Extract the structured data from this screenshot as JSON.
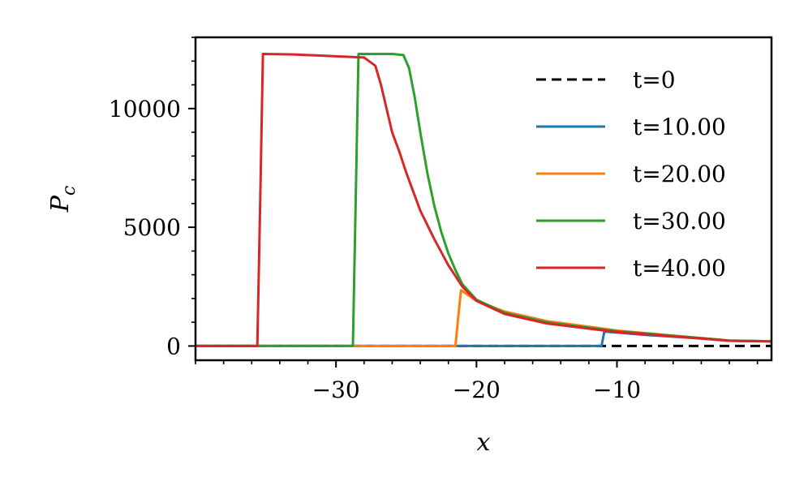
{
  "chart_data": {
    "type": "line",
    "xlabel": "x",
    "ylabel": "P",
    "ylabel_subscript": "c",
    "xlim": [
      -40,
      1
    ],
    "ylim": [
      -600,
      13000
    ],
    "xticks": [
      -30,
      -20,
      -10
    ],
    "xtick_labels": [
      "−30",
      "−20",
      "−10"
    ],
    "yticks": [
      0,
      5000,
      10000
    ],
    "ytick_labels": [
      "0",
      "5000",
      "10000"
    ],
    "x_minor_tick_step": 2,
    "y_minor_tick_step": 1000,
    "legend_position": "upper-right",
    "grid": false,
    "series": [
      {
        "name": "t=0",
        "color": "#000000",
        "dash": "dashed",
        "x": [
          -40,
          1
        ],
        "y": [
          0,
          0
        ]
      },
      {
        "name": "t=10.00",
        "color": "#1f77b4",
        "dash": "solid",
        "x": [
          -40,
          -11.1,
          -10.9,
          -10.7,
          -8,
          -4,
          -2,
          1
        ],
        "y": [
          0,
          0,
          600,
          600,
          470,
          320,
          220,
          200
        ]
      },
      {
        "name": "t=20.00",
        "color": "#ff7f0e",
        "dash": "solid",
        "x": [
          -40,
          -21.5,
          -21.3,
          -21.1,
          -20,
          -18,
          -15,
          -10,
          -5,
          -2,
          1
        ],
        "y": [
          0,
          0,
          1200,
          2350,
          1900,
          1450,
          1050,
          650,
          380,
          230,
          200
        ]
      },
      {
        "name": "t=30.00",
        "color": "#2ca02c",
        "dash": "solid",
        "x": [
          -40,
          -28.8,
          -28.6,
          -28.4,
          -27.5,
          -26,
          -25.2,
          -24.8,
          -24.4,
          -24,
          -23.5,
          -23,
          -22.5,
          -22,
          -21.5,
          -21,
          -20,
          -18,
          -15,
          -10,
          -5,
          -2,
          1
        ],
        "y": [
          0,
          0,
          6000,
          12300,
          12300,
          12300,
          12250,
          11700,
          10500,
          9000,
          7300,
          5900,
          4800,
          3900,
          3200,
          2600,
          1950,
          1400,
          1000,
          620,
          380,
          230,
          200
        ]
      },
      {
        "name": "t=40.00",
        "color": "#d62728",
        "dash": "solid",
        "x": [
          -40,
          -35.6,
          -35.4,
          -35.2,
          -33,
          -30,
          -28,
          -27.2,
          -26.8,
          -26.4,
          -26,
          -25.5,
          -25,
          -24.5,
          -24,
          -23,
          -22,
          -21,
          -20,
          -18,
          -15,
          -10,
          -5,
          -2,
          1
        ],
        "y": [
          0,
          0,
          6000,
          12300,
          12280,
          12200,
          12150,
          11800,
          11000,
          10000,
          9000,
          8200,
          7300,
          6500,
          5700,
          4500,
          3400,
          2500,
          1900,
          1350,
          950,
          590,
          360,
          220,
          190
        ]
      }
    ]
  }
}
